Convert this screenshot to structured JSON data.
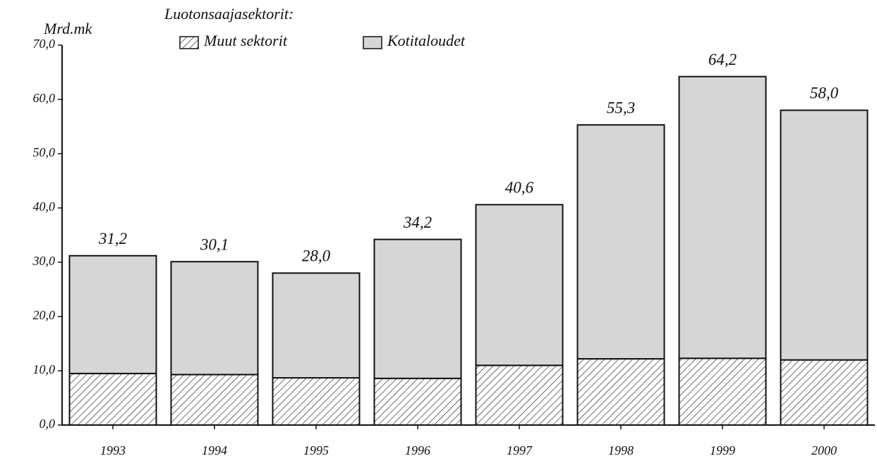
{
  "chart_data": {
    "type": "stacked_bar",
    "legend_title": "Luotonsaajasektorit:",
    "y_label": "Mrd.mk",
    "categories": [
      "1993",
      "1994",
      "1995",
      "1996",
      "1997",
      "1998",
      "1999",
      "2000"
    ],
    "series": [
      {
        "name": "Muut sektorit",
        "color": "#222222",
        "hatch": true,
        "values": [
          9.5,
          9.3,
          8.7,
          8.6,
          11.0,
          12.2,
          12.3,
          12.0
        ]
      },
      {
        "name": "Kotitaloudet",
        "color": "#d6d6d6",
        "hatch": false,
        "values": [
          21.7,
          20.8,
          19.3,
          25.6,
          29.6,
          43.1,
          51.9,
          46.0
        ]
      }
    ],
    "totals": [
      31.2,
      30.1,
      28.0,
      34.2,
      40.6,
      55.3,
      64.2,
      58.0
    ],
    "total_labels": [
      "31,2",
      "30,1",
      "28,0",
      "34,2",
      "40,6",
      "55,3",
      "64,2",
      "58,0"
    ],
    "ylim": [
      0,
      70
    ],
    "yticks": [
      {
        "value": 0,
        "label": "0,0"
      },
      {
        "value": 10,
        "label": "10,0"
      },
      {
        "value": 20,
        "label": "20,0"
      },
      {
        "value": 30,
        "label": "30,0"
      },
      {
        "value": 40,
        "label": "40,0"
      },
      {
        "value": 50,
        "label": "50,0"
      },
      {
        "value": 60,
        "label": "60,0"
      },
      {
        "value": 70,
        "label": "70,0"
      }
    ]
  }
}
